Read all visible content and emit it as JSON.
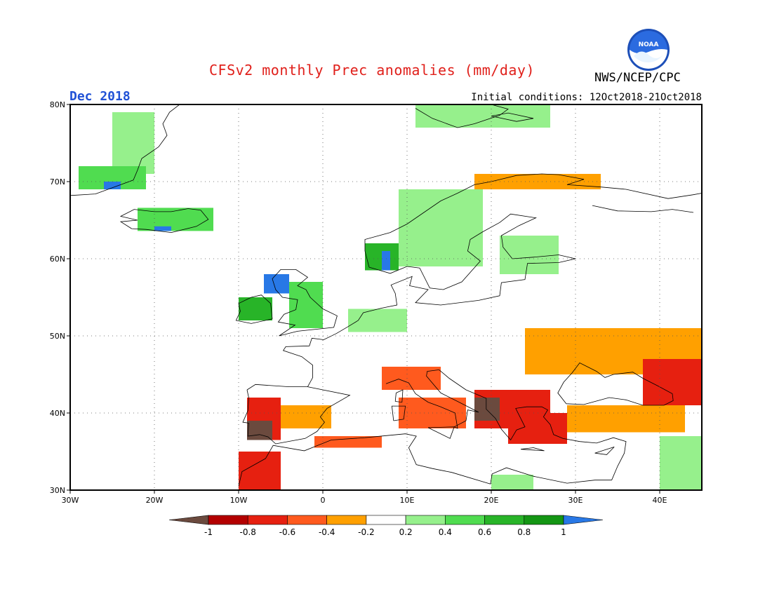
{
  "header": {
    "title": "CFSv2 monthly Prec anomalies (mm/day)",
    "title_color": "#e0201b",
    "month": "Dec 2018",
    "month_color": "#2152d6",
    "agency": "NWS/NCEP/CPC",
    "initial_conditions": "Initial conditions: 12Oct2018-21Oct2018",
    "logo_text": "NOAA"
  },
  "map": {
    "lon_range": [
      -30,
      45
    ],
    "lat_range": [
      30,
      80
    ],
    "lon_ticks": [
      {
        "value": -30,
        "label": "30W"
      },
      {
        "value": -20,
        "label": "20W"
      },
      {
        "value": -10,
        "label": "10W"
      },
      {
        "value": 0,
        "label": "0"
      },
      {
        "value": 10,
        "label": "10E"
      },
      {
        "value": 20,
        "label": "20E"
      },
      {
        "value": 30,
        "label": "30E"
      },
      {
        "value": 40,
        "label": "40E"
      }
    ],
    "lat_ticks": [
      {
        "value": 30,
        "label": "30N"
      },
      {
        "value": 40,
        "label": "40N"
      },
      {
        "value": 50,
        "label": "50N"
      },
      {
        "value": 60,
        "label": "60N"
      },
      {
        "value": 70,
        "label": "70N"
      },
      {
        "value": 80,
        "label": "80N"
      }
    ],
    "grid": true
  },
  "legend": {
    "colors": [
      "#6b4a3e",
      "#b30000",
      "#e62010",
      "#ff5a1e",
      "#ffa000",
      "#ffffff",
      "#96f08c",
      "#50dc50",
      "#28b428",
      "#149614",
      "#2878e6"
    ],
    "labels": [
      "-1",
      "-0.8",
      "-0.6",
      "-0.4",
      "-0.2",
      "0.2",
      "0.4",
      "0.6",
      "0.8",
      "1"
    ]
  },
  "chart_data": {
    "type": "heatmap",
    "title": "CFSv2 monthly Prec anomalies (mm/day)",
    "units": "mm/day",
    "lon_range": [
      -30,
      45
    ],
    "lat_range": [
      30,
      80
    ],
    "regions": [
      {
        "name": "SE Greenland",
        "lon": [
          -25,
          -20
        ],
        "lat": [
          71,
          79
        ],
        "value": 0.35
      },
      {
        "name": "E Greenland coast",
        "lon": [
          -29,
          -21
        ],
        "lat": [
          69,
          72
        ],
        "value": 0.6
      },
      {
        "name": "Greenland tip",
        "lon": [
          -26,
          -24
        ],
        "lat": [
          69,
          70
        ],
        "value": 1.1
      },
      {
        "name": "Iceland",
        "lon": [
          -22,
          -13
        ],
        "lat": [
          63.6,
          66.6
        ],
        "value": 0.6
      },
      {
        "name": "SE Iceland",
        "lon": [
          -20,
          -18
        ],
        "lat": [
          63.6,
          64.2
        ],
        "value": 1.1
      },
      {
        "name": "Svalbard",
        "lon": [
          11,
          27
        ],
        "lat": [
          77,
          80
        ],
        "value": 0.35
      },
      {
        "name": "Norway coast",
        "lon": [
          5,
          9
        ],
        "lat": [
          58.5,
          62
        ],
        "value": 0.7
      },
      {
        "name": "SW Norway",
        "lon": [
          7,
          8
        ],
        "lat": [
          58.5,
          61
        ],
        "value": 1.1
      },
      {
        "name": "Scandinavian mountains",
        "lon": [
          9,
          19
        ],
        "lat": [
          59,
          69
        ],
        "value": 0.3
      },
      {
        "name": "Finland south",
        "lon": [
          21,
          28
        ],
        "lat": [
          58,
          63
        ],
        "value": 0.3
      },
      {
        "name": "Scotland west",
        "lon": [
          -7,
          -4
        ],
        "lat": [
          55.5,
          58
        ],
        "value": 1.1
      },
      {
        "name": "Britain",
        "lon": [
          -4,
          0
        ],
        "lat": [
          51,
          57
        ],
        "value": 0.5
      },
      {
        "name": "Ireland",
        "lon": [
          -10,
          -6
        ],
        "lat": [
          52,
          55
        ],
        "value": 0.7
      },
      {
        "name": "Low Countries and N Germany",
        "lon": [
          3,
          10
        ],
        "lat": [
          50.5,
          53.5
        ],
        "value": 0.3
      },
      {
        "name": "North Cape",
        "lon": [
          18,
          33
        ],
        "lat": [
          69,
          71
        ],
        "value": -0.3
      },
      {
        "name": "N Africa coast",
        "lon": [
          -1,
          7
        ],
        "lat": [
          35.5,
          37
        ],
        "value": -0.5
      },
      {
        "name": "Iberia west",
        "lon": [
          -9,
          -5
        ],
        "lat": [
          36.5,
          42
        ],
        "value": -0.7
      },
      {
        "name": "Iberia SW",
        "lon": [
          -9,
          -6
        ],
        "lat": [
          36.5,
          39
        ],
        "value": -1.05
      },
      {
        "name": "Iberia central",
        "lon": [
          -5,
          1
        ],
        "lat": [
          38,
          41
        ],
        "value": -0.35
      },
      {
        "name": "Morocco",
        "lon": [
          -10,
          -5
        ],
        "lat": [
          30,
          35
        ],
        "value": -0.8
      },
      {
        "name": "N Italy and Alps",
        "lon": [
          7,
          14
        ],
        "lat": [
          43,
          46
        ],
        "value": -0.5
      },
      {
        "name": "Tyrrhenian",
        "lon": [
          9,
          17
        ],
        "lat": [
          38,
          42
        ],
        "value": -0.45
      },
      {
        "name": "Balkans",
        "lon": [
          18,
          27
        ],
        "lat": [
          38,
          43
        ],
        "value": -0.7
      },
      {
        "name": "Adriatic coast",
        "lon": [
          18,
          21
        ],
        "lat": [
          39,
          42
        ],
        "value": -1.05
      },
      {
        "name": "Greece and Aegean",
        "lon": [
          22,
          29
        ],
        "lat": [
          36,
          40
        ],
        "value": -0.8
      },
      {
        "name": "Ukraine",
        "lon": [
          24,
          45
        ],
        "lat": [
          45,
          51
        ],
        "value": -0.3
      },
      {
        "name": "Black Sea east and Caucasus",
        "lon": [
          38,
          45
        ],
        "lat": [
          41,
          47
        ],
        "value": -0.7
      },
      {
        "name": "Anatolia",
        "lon": [
          29,
          43
        ],
        "lat": [
          37.5,
          41
        ],
        "value": -0.35
      },
      {
        "name": "Levant and Mesopotamia",
        "lon": [
          40,
          45
        ],
        "lat": [
          30,
          37
        ],
        "value": 0.3
      },
      {
        "name": "Libya Egypt coast",
        "lon": [
          20,
          25
        ],
        "lat": [
          30,
          32
        ],
        "value": 0.3
      }
    ]
  }
}
